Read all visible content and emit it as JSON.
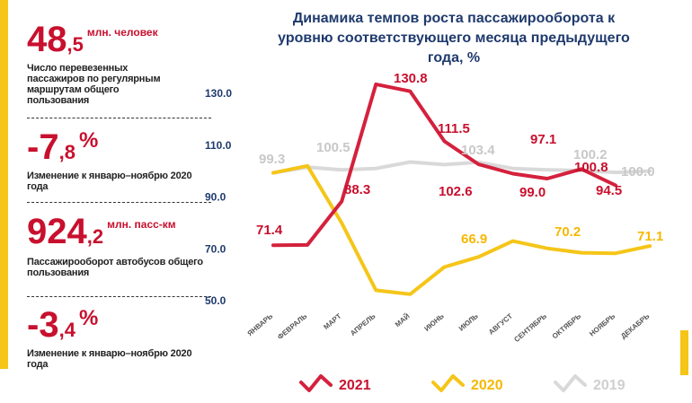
{
  "stats": [
    {
      "num": "48",
      "dec": ",5",
      "unit": "млн. человек",
      "desc": "Число перевезенных пассажиров по регулярным маршрутам общего пользования"
    },
    {
      "num": "-7",
      "dec": ",8",
      "unit": "%",
      "desc": "Изменение к январю–ноябрю 2020 года"
    },
    {
      "num": "924",
      "dec": ",2",
      "unit": "млн. пасс-км",
      "desc": "Пассажирооборот автобусов общего пользования"
    },
    {
      "num": "-3",
      "dec": ",4",
      "unit": "%",
      "desc": "Изменение к январю–ноябрю 2020 года"
    }
  ],
  "chart_data": {
    "type": "line",
    "title": "Динамика темпов роста пассажирооборота к уровню соответствующего месяца предыдущего года, %",
    "categories": [
      "ЯНВАРЬ",
      "ФЕВРАЛЬ",
      "МАРТ",
      "АПРЕЛЬ",
      "МАЙ",
      "ИЮНЬ",
      "ИЮЛЬ",
      "АВГУСТ",
      "СЕНТЯБРЬ",
      "ОКТЯБРЬ",
      "НОЯБРЬ",
      "ДЕКАБРЬ"
    ],
    "y_ticks": [
      "130.0",
      "110.0",
      "90.0",
      "70.0",
      "50.0"
    ],
    "ylim": [
      50,
      130
    ],
    "series": [
      {
        "name": "2021",
        "color": "#d4213d",
        "values": [
          71.4,
          71.5,
          88.3,
          133.5,
          130.8,
          111.5,
          102.6,
          99.0,
          97.1,
          100.8,
          94.5,
          null
        ]
      },
      {
        "name": "2020",
        "color": "#f5c518",
        "values": [
          99.3,
          102.0,
          80.0,
          54.0,
          52.5,
          63.0,
          66.9,
          73.0,
          70.2,
          68.5,
          68.3,
          71.1
        ]
      },
      {
        "name": "2019",
        "color": "#d9d9d9",
        "values": [
          99.3,
          101.5,
          100.5,
          101.0,
          103.5,
          102.5,
          103.4,
          101.0,
          100.5,
          100.2,
          99.5,
          100.0
        ]
      }
    ],
    "data_labels": [
      {
        "text": "71.4",
        "series": "2021"
      },
      {
        "text": "88.3",
        "series": "2021"
      },
      {
        "text": "130.8",
        "series": "2021"
      },
      {
        "text": "111.5",
        "series": "2021"
      },
      {
        "text": "102.6",
        "series": "2021"
      },
      {
        "text": "99.0",
        "series": "2021"
      },
      {
        "text": "97.1",
        "series": "2021"
      },
      {
        "text": "100.8",
        "series": "2021"
      },
      {
        "text": "94.5",
        "series": "2021"
      },
      {
        "text": "99.3",
        "series": "2019"
      },
      {
        "text": "100.5",
        "series": "2019"
      },
      {
        "text": "103.4",
        "series": "2019"
      },
      {
        "text": "100.2",
        "series": "2019"
      },
      {
        "text": "100.0",
        "series": "2019"
      },
      {
        "text": "66.9",
        "series": "2020"
      },
      {
        "text": "70.2",
        "series": "2020"
      },
      {
        "text": "71.1",
        "series": "2020"
      }
    ],
    "legend": [
      "2021",
      "2020",
      "2019"
    ],
    "legend_position": "bottom",
    "grid": false
  }
}
